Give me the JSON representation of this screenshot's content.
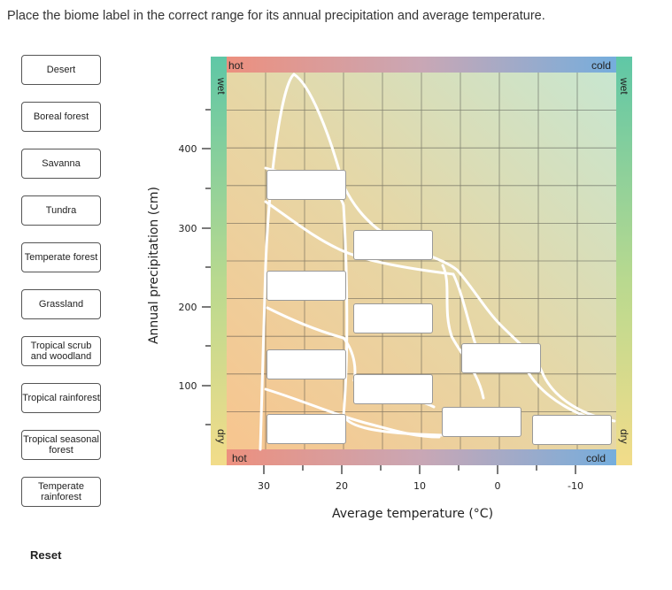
{
  "instruction": "Place the biome label in the correct range for its annual precipitation and average temperature.",
  "labels": [
    {
      "text": "Desert"
    },
    {
      "text": "Boreal forest"
    },
    {
      "text": "Savanna"
    },
    {
      "text": "Tundra"
    },
    {
      "text": "Temperate forest"
    },
    {
      "text": "Grassland"
    },
    {
      "text": "Tropical scrub and woodland"
    },
    {
      "text": "Tropical rainforest"
    },
    {
      "text": "Tropical seasonal forest"
    },
    {
      "text": "Temperate rainforest"
    }
  ],
  "reset_label": "Reset",
  "chart": {
    "ylabel": "Annual precipitation (cm)",
    "xlabel": "Average temperature (°C)",
    "corner_hot": "hot",
    "corner_cold": "cold",
    "side_wet": "wet",
    "side_dry": "dry",
    "y_ticks": [
      "400",
      "300",
      "200",
      "100"
    ],
    "x_ticks": [
      "30",
      "20",
      "10",
      "0",
      "-10"
    ],
    "colors": {
      "hot": "#ef8e7a",
      "cold": "#6eaee0",
      "wet": "#5fc7a6",
      "dry": "#f2dc8a",
      "fill_hot_dry": "#f7c58f",
      "fill_cold_wet": "#c8e6d0"
    }
  },
  "drop_zone_count": 10
}
